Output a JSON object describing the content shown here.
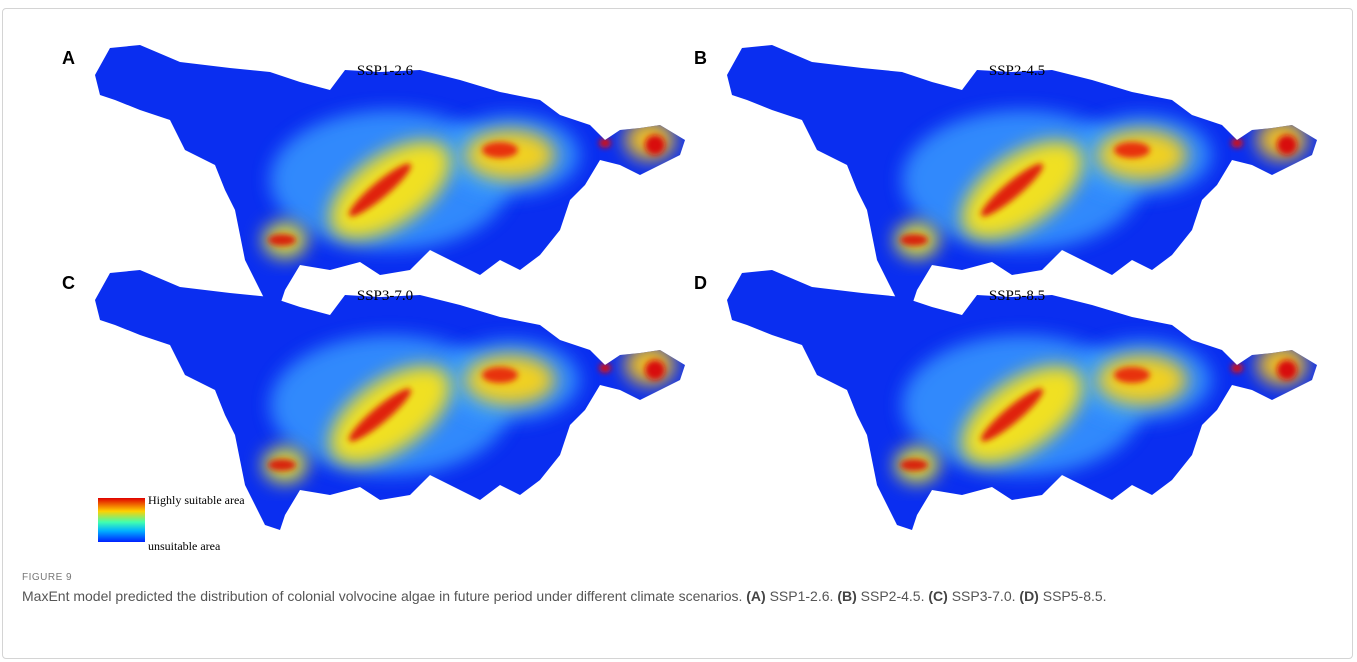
{
  "figure": {
    "panels": [
      {
        "letter": "A",
        "title": "SSP1-2.6"
      },
      {
        "letter": "B",
        "title": "SSP2-4.5"
      },
      {
        "letter": "C",
        "title": "SSP3-7.0"
      },
      {
        "letter": "D",
        "title": "SSP5-8.5"
      }
    ],
    "legend": {
      "high": "Highly suitable area",
      "low": "unsuitable area"
    },
    "caption": {
      "label": "FIGURE 9",
      "text": "MaxEnt model predicted the distribution of colonial volvocine algae in future period under different climate scenarios.",
      "items": [
        {
          "tag": "(A)",
          "text": "SSP1-2.6."
        },
        {
          "tag": "(B)",
          "text": "SSP2-4.5."
        },
        {
          "tag": "(C)",
          "text": "SSP3-7.0."
        },
        {
          "tag": "(D)",
          "text": "SSP5-8.5."
        }
      ]
    }
  }
}
